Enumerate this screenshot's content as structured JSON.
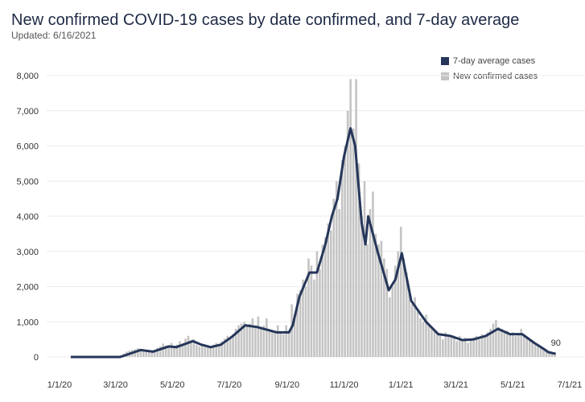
{
  "chart_data": {
    "type": "bar+line",
    "title": "New confirmed COVID-19 cases by date confirmed, and 7-day average",
    "subtitle": "Updated: 6/16/2021",
    "colors": {
      "average": "#26365a",
      "cases": "#c4c4c4",
      "grid": "#ececec"
    },
    "ylim": [
      0,
      8000
    ],
    "yticks": [
      0,
      1000,
      2000,
      3000,
      4000,
      5000,
      6000,
      7000,
      8000
    ],
    "ytick_labels": [
      "0",
      "1,000",
      "2,000",
      "3,000",
      "4,000",
      "5,000",
      "6,000",
      "7,000",
      "8,000"
    ],
    "xlim": [
      "2020-01-01",
      "2021-07-01"
    ],
    "xticks": [
      "2020-01-01",
      "2020-03-01",
      "2020-05-01",
      "2020-07-01",
      "2020-09-01",
      "2020-11-01",
      "2021-01-01",
      "2021-03-01",
      "2021-05-01",
      "2021-07-01"
    ],
    "xtick_labels": [
      "1/1/20",
      "3/1/20",
      "5/1/20",
      "7/1/20",
      "9/1/20",
      "11/1/20",
      "1/1/21",
      "3/1/21",
      "5/1/21",
      "7/1/21"
    ],
    "grid": true,
    "legend_placement": "top-right",
    "series": [
      {
        "name": "7-day average cases",
        "kind": "line",
        "x": [
          "2020-01-13",
          "2020-03-06",
          "2020-03-28",
          "2020-04-10",
          "2020-04-27",
          "2020-05-05",
          "2020-05-23",
          "2020-06-01",
          "2020-06-11",
          "2020-06-22",
          "2020-07-05",
          "2020-07-18",
          "2020-07-31",
          "2020-08-21",
          "2020-09-03",
          "2020-09-07",
          "2020-09-14",
          "2020-09-25",
          "2020-10-03",
          "2020-10-12",
          "2020-10-19",
          "2020-10-25",
          "2020-11-01",
          "2020-11-08",
          "2020-11-13",
          "2020-11-20",
          "2020-11-24",
          "2020-11-27",
          "2020-12-07",
          "2020-12-19",
          "2020-12-26",
          "2021-01-02",
          "2021-01-12",
          "2021-01-28",
          "2021-02-10",
          "2021-02-23",
          "2021-03-08",
          "2021-03-20",
          "2021-04-02",
          "2021-04-15",
          "2021-04-28",
          "2021-05-11",
          "2021-05-24",
          "2021-06-02",
          "2021-06-08",
          "2021-06-16"
        ],
        "values": [
          0,
          0,
          200,
          150,
          300,
          280,
          450,
          350,
          280,
          350,
          600,
          900,
          850,
          700,
          700,
          900,
          1700,
          2400,
          2400,
          3200,
          4000,
          4500,
          5700,
          6500,
          6000,
          3800,
          3200,
          4000,
          3000,
          1900,
          2200,
          2950,
          1600,
          1000,
          650,
          600,
          480,
          500,
          600,
          800,
          650,
          650,
          400,
          250,
          140,
          90
        ]
      },
      {
        "name": "New confirmed cases",
        "kind": "bar",
        "start": "2020-03-01",
        "interval_days": 3,
        "values": [
          0,
          20,
          50,
          100,
          150,
          180,
          200,
          220,
          250,
          200,
          180,
          160,
          150,
          170,
          200,
          260,
          300,
          380,
          330,
          280,
          400,
          300,
          350,
          450,
          380,
          520,
          600,
          480,
          500,
          350,
          300,
          330,
          280,
          260,
          300,
          350,
          400,
          380,
          450,
          520,
          600,
          560,
          650,
          800,
          900,
          950,
          1000,
          920,
          950,
          1100,
          900,
          1150,
          850,
          900,
          1100,
          800,
          750,
          700,
          900,
          700,
          650,
          900,
          750,
          1500,
          1200,
          1800,
          1900,
          2200,
          2000,
          2800,
          2600,
          2200,
          3000,
          2500,
          3200,
          3400,
          3800,
          3600,
          4500,
          5000,
          4200,
          5600,
          6000,
          7000,
          7900,
          6500,
          7900,
          5500,
          4000,
          5000,
          3200,
          4200,
          4700,
          3500,
          3200,
          3300,
          2800,
          2500,
          1700,
          2000,
          2600,
          3000,
          3700,
          2800,
          2400,
          1800,
          1500,
          1700,
          1300,
          1100,
          1000,
          1200,
          900,
          800,
          750,
          700,
          650,
          500,
          700,
          600,
          600,
          550,
          450,
          600,
          500,
          550,
          400,
          500,
          550,
          600,
          500,
          650,
          600,
          700,
          800,
          950,
          1050,
          850,
          800,
          700,
          750,
          650,
          700,
          600,
          650,
          800,
          600,
          550,
          500,
          450,
          400,
          350,
          300,
          200,
          180,
          150,
          120,
          100
        ]
      }
    ],
    "annotations": [
      {
        "date": "2021-06-16",
        "label": "90"
      }
    ]
  }
}
